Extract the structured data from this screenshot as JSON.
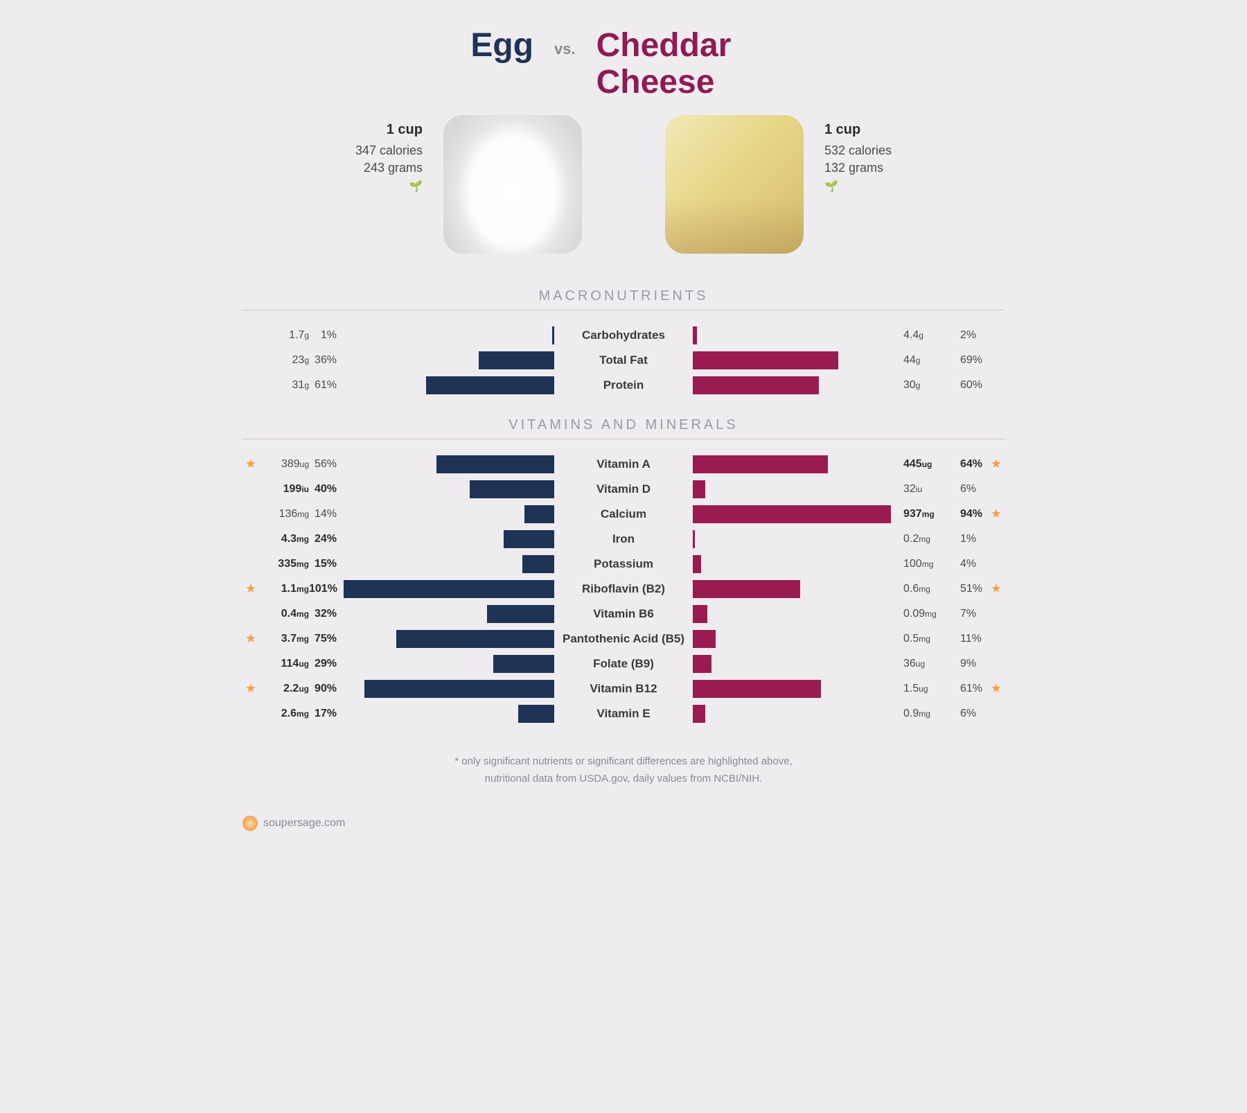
{
  "colors": {
    "left_bar": "#1e3356",
    "right_bar": "#991b4f",
    "star": "#f0a050",
    "heading": "#9a9aa0",
    "background": "#efecef"
  },
  "max_bar_pct": 100,
  "header": {
    "left_title": "Egg",
    "vs": "vs.",
    "right_title": "Cheddar Cheese"
  },
  "left_food": {
    "serving": "1 cup",
    "calories": "347 calories",
    "grams": "243 grams"
  },
  "right_food": {
    "serving": "1 cup",
    "calories": "532 calories",
    "grams": "132 grams"
  },
  "sections": {
    "macro_title": "MACRONUTRIENTS",
    "vitamins_title": "VITAMINS AND MINERALS"
  },
  "macros": [
    {
      "label": "Carbohydrates",
      "left": {
        "val": "1.7",
        "unit": "g",
        "pct": "1%",
        "bar_pct": 1,
        "bold": false,
        "star": false
      },
      "right": {
        "val": "4.4",
        "unit": "g",
        "pct": "2%",
        "bar_pct": 2,
        "bold": false,
        "star": false
      }
    },
    {
      "label": "Total Fat",
      "left": {
        "val": "23",
        "unit": "g",
        "pct": "36%",
        "bar_pct": 36,
        "bold": false,
        "star": false
      },
      "right": {
        "val": "44",
        "unit": "g",
        "pct": "69%",
        "bar_pct": 69,
        "bold": false,
        "star": false
      }
    },
    {
      "label": "Protein",
      "left": {
        "val": "31",
        "unit": "g",
        "pct": "61%",
        "bar_pct": 61,
        "bold": false,
        "star": false
      },
      "right": {
        "val": "30",
        "unit": "g",
        "pct": "60%",
        "bar_pct": 60,
        "bold": false,
        "star": false
      }
    }
  ],
  "vitamins": [
    {
      "label": "Vitamin A",
      "left": {
        "val": "389",
        "unit": "ug",
        "pct": "56%",
        "bar_pct": 56,
        "bold": false,
        "star": true
      },
      "right": {
        "val": "445",
        "unit": "ug",
        "pct": "64%",
        "bar_pct": 64,
        "bold": true,
        "star": true
      }
    },
    {
      "label": "Vitamin D",
      "left": {
        "val": "199",
        "unit": "iu",
        "pct": "40%",
        "bar_pct": 40,
        "bold": true,
        "star": false
      },
      "right": {
        "val": "32",
        "unit": "iu",
        "pct": "6%",
        "bar_pct": 6,
        "bold": false,
        "star": false
      }
    },
    {
      "label": "Calcium",
      "left": {
        "val": "136",
        "unit": "mg",
        "pct": "14%",
        "bar_pct": 14,
        "bold": false,
        "star": false
      },
      "right": {
        "val": "937",
        "unit": "mg",
        "pct": "94%",
        "bar_pct": 94,
        "bold": true,
        "star": true
      }
    },
    {
      "label": "Iron",
      "left": {
        "val": "4.3",
        "unit": "mg",
        "pct": "24%",
        "bar_pct": 24,
        "bold": true,
        "star": false
      },
      "right": {
        "val": "0.2",
        "unit": "mg",
        "pct": "1%",
        "bar_pct": 1,
        "bold": false,
        "star": false
      }
    },
    {
      "label": "Potassium",
      "left": {
        "val": "335",
        "unit": "mg",
        "pct": "15%",
        "bar_pct": 15,
        "bold": true,
        "star": false
      },
      "right": {
        "val": "100",
        "unit": "mg",
        "pct": "4%",
        "bar_pct": 4,
        "bold": false,
        "star": false
      }
    },
    {
      "label": "Riboflavin (B2)",
      "left": {
        "val": "1.1",
        "unit": "mg",
        "pct": "101%",
        "bar_pct": 100,
        "bold": true,
        "star": true
      },
      "right": {
        "val": "0.6",
        "unit": "mg",
        "pct": "51%",
        "bar_pct": 51,
        "bold": false,
        "star": true
      }
    },
    {
      "label": "Vitamin B6",
      "left": {
        "val": "0.4",
        "unit": "mg",
        "pct": "32%",
        "bar_pct": 32,
        "bold": true,
        "star": false
      },
      "right": {
        "val": "0.09",
        "unit": "mg",
        "pct": "7%",
        "bar_pct": 7,
        "bold": false,
        "star": false
      }
    },
    {
      "label": "Pantothenic Acid (B5)",
      "left": {
        "val": "3.7",
        "unit": "mg",
        "pct": "75%",
        "bar_pct": 75,
        "bold": true,
        "star": true
      },
      "right": {
        "val": "0.5",
        "unit": "mg",
        "pct": "11%",
        "bar_pct": 11,
        "bold": false,
        "star": false
      }
    },
    {
      "label": "Folate (B9)",
      "left": {
        "val": "114",
        "unit": "ug",
        "pct": "29%",
        "bar_pct": 29,
        "bold": true,
        "star": false
      },
      "right": {
        "val": "36",
        "unit": "ug",
        "pct": "9%",
        "bar_pct": 9,
        "bold": false,
        "star": false
      }
    },
    {
      "label": "Vitamin B12",
      "left": {
        "val": "2.2",
        "unit": "ug",
        "pct": "90%",
        "bar_pct": 90,
        "bold": true,
        "star": true
      },
      "right": {
        "val": "1.5",
        "unit": "ug",
        "pct": "61%",
        "bar_pct": 61,
        "bold": false,
        "star": true
      }
    },
    {
      "label": "Vitamin E",
      "left": {
        "val": "2.6",
        "unit": "mg",
        "pct": "17%",
        "bar_pct": 17,
        "bold": true,
        "star": false
      },
      "right": {
        "val": "0.9",
        "unit": "mg",
        "pct": "6%",
        "bar_pct": 6,
        "bold": false,
        "star": false
      }
    }
  ],
  "footnote": {
    "line1": "* only significant nutrients or significant differences are highlighted above,",
    "line2": "nutritional data from USDA.gov, daily values from NCBI/NIH."
  },
  "brand": "soupersage.com"
}
